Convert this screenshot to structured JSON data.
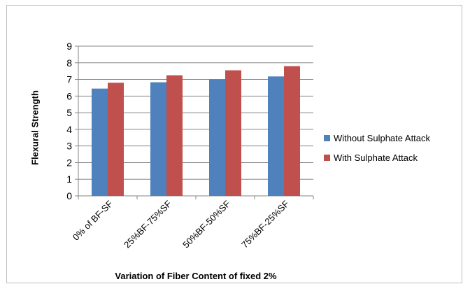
{
  "chart_data": {
    "type": "bar",
    "title": "",
    "xlabel": "Variation of Fiber Content of fixed 2%",
    "ylabel": "Flexural Strength",
    "categories": [
      "0% of BF-SF",
      "25%BF-75%SF",
      "50%BF-50%SF",
      "75%BF-25%SF"
    ],
    "series": [
      {
        "name": "Without Sulphate Attack",
        "color": "#4f81bd",
        "values": [
          6.45,
          6.83,
          7.0,
          7.18
        ]
      },
      {
        "name": "With Sulphate Attack",
        "color": "#c0504d",
        "values": [
          6.8,
          7.25,
          7.55,
          7.8
        ]
      }
    ],
    "ylim": [
      0,
      9
    ],
    "yticks": [
      "0",
      "1",
      "2",
      "3",
      "4",
      "5",
      "6",
      "7",
      "8",
      "9"
    ],
    "grid": true,
    "legend": "right"
  }
}
